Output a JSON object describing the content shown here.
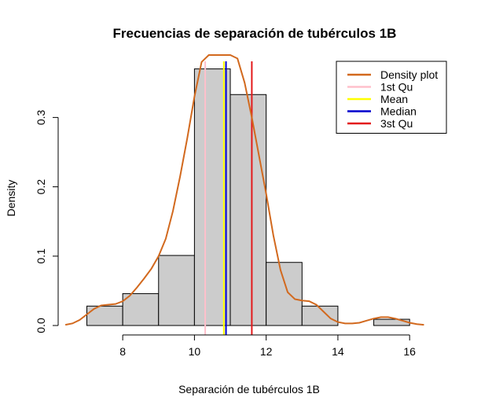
{
  "chart_data": {
    "type": "histogram",
    "title": "Frecuencias de separación de tubérculos 1B",
    "xlabel": "Separación de tubérculos 1B",
    "ylabel": "Density",
    "xlim": [
      6.2,
      16.5
    ],
    "ylim": [
      0,
      0.39
    ],
    "x_ticks": [
      8,
      10,
      12,
      14,
      16
    ],
    "y_ticks": [
      0.0,
      0.1,
      0.2,
      0.3
    ],
    "y_tick_labels": [
      "0.0",
      "0.1",
      "0.2",
      "0.3"
    ],
    "bar_fill": "#cccccc",
    "bins": [
      {
        "start": 7,
        "end": 8,
        "density": 0.028
      },
      {
        "start": 8,
        "end": 9,
        "density": 0.046
      },
      {
        "start": 9,
        "end": 10,
        "density": 0.101
      },
      {
        "start": 10,
        "end": 11,
        "density": 0.37
      },
      {
        "start": 11,
        "end": 12,
        "density": 0.333
      },
      {
        "start": 12,
        "end": 13,
        "density": 0.091
      },
      {
        "start": 13,
        "end": 14,
        "density": 0.028
      },
      {
        "start": 14,
        "end": 15,
        "density": 0.0
      },
      {
        "start": 15,
        "end": 16,
        "density": 0.009
      }
    ],
    "density_curve": {
      "color": "#d2691e",
      "x": [
        6.4,
        6.6,
        6.8,
        7.0,
        7.2,
        7.4,
        7.6,
        7.8,
        8.0,
        8.2,
        8.4,
        8.6,
        8.8,
        9.0,
        9.2,
        9.4,
        9.6,
        9.8,
        10.0,
        10.2,
        10.4,
        10.6,
        10.8,
        11.0,
        11.2,
        11.4,
        11.6,
        11.8,
        12.0,
        12.2,
        12.4,
        12.6,
        12.8,
        13.0,
        13.2,
        13.4,
        13.6,
        13.8,
        14.0,
        14.2,
        14.4,
        14.6,
        14.8,
        15.0,
        15.2,
        15.4,
        15.6,
        15.8,
        16.0,
        16.2,
        16.4
      ],
      "y": [
        0.001,
        0.003,
        0.008,
        0.016,
        0.024,
        0.029,
        0.03,
        0.031,
        0.035,
        0.043,
        0.055,
        0.068,
        0.082,
        0.1,
        0.125,
        0.165,
        0.215,
        0.27,
        0.33,
        0.38,
        0.41,
        0.425,
        0.425,
        0.41,
        0.385,
        0.35,
        0.3,
        0.245,
        0.19,
        0.13,
        0.08,
        0.048,
        0.038,
        0.036,
        0.035,
        0.03,
        0.02,
        0.01,
        0.005,
        0.003,
        0.003,
        0.004,
        0.007,
        0.01,
        0.012,
        0.012,
        0.01,
        0.007,
        0.004,
        0.002,
        0.001
      ]
    },
    "vlines": [
      {
        "name": "1st Qu",
        "x": 10.3,
        "color": "#ffc0cb"
      },
      {
        "name": "Mean",
        "x": 10.82,
        "color": "#ffff00"
      },
      {
        "name": "Median",
        "x": 10.88,
        "color": "#0000cd"
      },
      {
        "name": "3st Qu",
        "x": 11.6,
        "color": "#e31a1c"
      }
    ],
    "legend": {
      "position": "top-right",
      "entries": [
        {
          "label": "Density plot",
          "color": "#d2691e"
        },
        {
          "label": "1st Qu",
          "color": "#ffc0cb"
        },
        {
          "label": "Mean",
          "color": "#ffff00"
        },
        {
          "label": "Median",
          "color": "#0000cd"
        },
        {
          "label": "3st Qu",
          "color": "#e31a1c"
        }
      ]
    }
  }
}
